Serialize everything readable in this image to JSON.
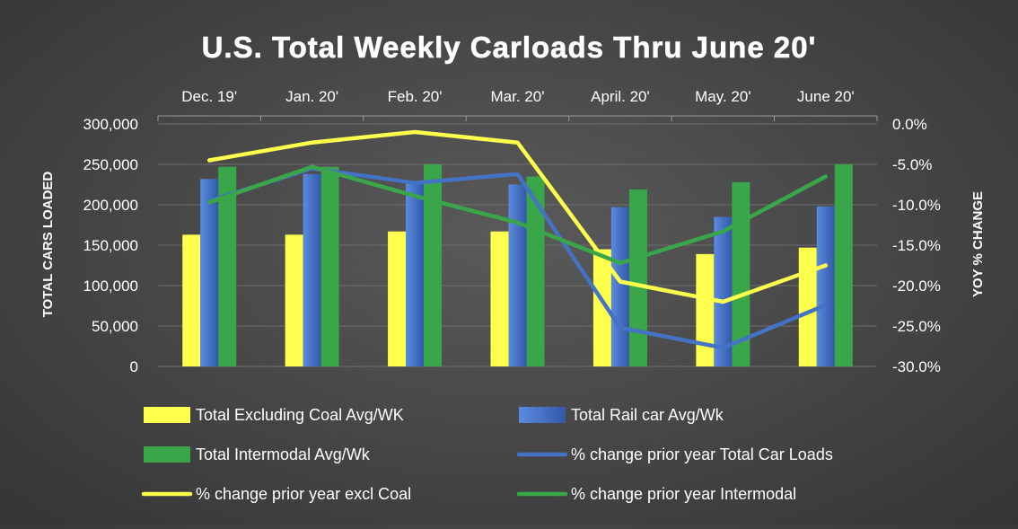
{
  "chart_data": {
    "type": "bar",
    "title": "U.S. Total Weekly Carloads Thru June 20'",
    "categories": [
      "Dec. 19'",
      "Jan. 20'",
      "Feb. 20'",
      "Mar. 20'",
      "April. 20'",
      "May. 20'",
      "June 20'"
    ],
    "ylabel": "TOTAL CARS LOADED",
    "y2label": "YOY % CHANGE",
    "ylim": [
      0,
      300000
    ],
    "y2lim": [
      -30,
      0
    ],
    "yticks": [
      "300,000",
      "250,000",
      "200,000",
      "150,000",
      "100,000",
      "50,000",
      "0"
    ],
    "y2ticks": [
      "0.0%",
      "-5.0%",
      "-10.0%",
      "-15.0%",
      "-20.0%",
      "-25.0%",
      "-30.0%"
    ],
    "grid": true,
    "bar_series": [
      {
        "name": "Total Excluding Coal Avg/WK",
        "color": "#ffff4d",
        "values": [
          163000,
          163000,
          167000,
          167000,
          145000,
          139000,
          147000
        ]
      },
      {
        "name": "Total Rail car Avg/Wk",
        "color": "#4472c4",
        "values": [
          232000,
          238000,
          226000,
          225000,
          197000,
          185000,
          198000
        ]
      },
      {
        "name": "Total Intermodal Avg/Wk",
        "color": "#3aa64a",
        "values": [
          247000,
          247000,
          250000,
          235000,
          219000,
          228000,
          250000
        ]
      }
    ],
    "line_series": [
      {
        "name": "% change prior year Total Car Loads",
        "color": "#4472c4",
        "values": [
          -9.5,
          -5.5,
          -7.3,
          -6.2,
          -25.2,
          -27.7,
          -22.4
        ]
      },
      {
        "name": "% change prior year excl Coal",
        "color": "#ffff4d",
        "values": [
          -4.5,
          -2.3,
          -1.0,
          -2.3,
          -19.5,
          -22.0,
          -17.5
        ]
      },
      {
        "name": "% change prior year Intermodal",
        "color": "#3aa64a",
        "values": [
          -9.7,
          -5.3,
          -8.9,
          -12.2,
          -17.2,
          -13.3,
          -6.5
        ]
      }
    ],
    "legend": {
      "placement": "bottom",
      "items": [
        {
          "label": "Total Excluding Coal Avg/WK",
          "kind": "bar",
          "color": "#ffff4d"
        },
        {
          "label": "Total Rail car Avg/Wk",
          "kind": "bar",
          "color": "#4472c4"
        },
        {
          "label": "Total Intermodal Avg/Wk",
          "kind": "bar",
          "color": "#3aa64a"
        },
        {
          "label": "% change prior year Total Car Loads",
          "kind": "line",
          "color": "#4472c4"
        },
        {
          "label": "% change prior year excl Coal",
          "kind": "line",
          "color": "#ffff4d"
        },
        {
          "label": "% change prior year Intermodal",
          "kind": "line",
          "color": "#3aa64a"
        }
      ]
    }
  }
}
